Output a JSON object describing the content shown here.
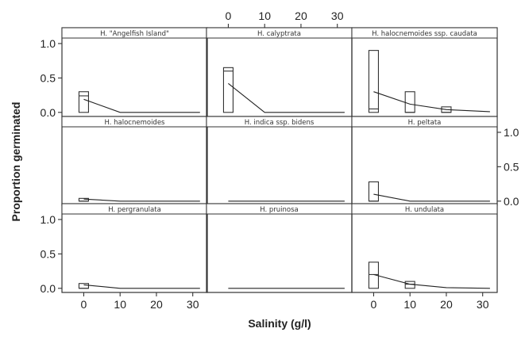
{
  "chart_data": {
    "type": "box",
    "xlabel": "Salinity (g/l)",
    "ylabel": "Proportion germinated",
    "xlim": [
      -6,
      34
    ],
    "ylim": [
      -0.06,
      1.08
    ],
    "x_ticks": [
      "0",
      "10",
      "20",
      "30"
    ],
    "x_tick_values": [
      0,
      10,
      20,
      30
    ],
    "y_ticks": [
      "0.0",
      "0.5",
      "1.0"
    ],
    "y_tick_values": [
      0,
      0.5,
      1.0
    ],
    "panels": [
      {
        "label": "H. \"Angelfish Island\"",
        "boxes": [
          {
            "x": 0,
            "q1": 0.0,
            "median": 0.24,
            "q3": 0.3
          }
        ],
        "line": [
          [
            0,
            0.19
          ],
          [
            10,
            0.0
          ],
          [
            32,
            0.0
          ]
        ]
      },
      {
        "label": "H. calyptrata",
        "boxes": [
          {
            "x": 0,
            "q1": 0.0,
            "median": 0.6,
            "q3": 0.65
          }
        ],
        "line": [
          [
            0,
            0.42
          ],
          [
            10,
            0.0
          ],
          [
            32,
            0.0
          ]
        ]
      },
      {
        "label": "H. halocnemoides ssp. caudata",
        "boxes": [
          {
            "x": 0,
            "q1": 0.0,
            "median": 0.05,
            "q3": 0.9
          },
          {
            "x": 10,
            "q1": 0.0,
            "median": 0.0,
            "q3": 0.3
          },
          {
            "x": 20,
            "q1": 0.0,
            "median": 0.0,
            "q3": 0.08
          }
        ],
        "line": [
          [
            0,
            0.3
          ],
          [
            10,
            0.12
          ],
          [
            20,
            0.04
          ],
          [
            32,
            0.01
          ]
        ]
      },
      {
        "label": "H. halocnemoides",
        "boxes": [
          {
            "x": 0,
            "q1": 0.0,
            "median": 0.0,
            "q3": 0.04
          }
        ],
        "line": [
          [
            0,
            0.03
          ],
          [
            10,
            0.0
          ],
          [
            32,
            0.0
          ]
        ]
      },
      {
        "label": "H. indica ssp. bidens",
        "boxes": [],
        "line": [
          [
            0,
            0.0
          ],
          [
            32,
            0.0
          ]
        ]
      },
      {
        "label": "H. peltata",
        "boxes": [
          {
            "x": 0,
            "q1": 0.0,
            "median": 0.0,
            "q3": 0.28
          }
        ],
        "line": [
          [
            0,
            0.1
          ],
          [
            10,
            0.0
          ],
          [
            32,
            0.0
          ]
        ]
      },
      {
        "label": "H. pergranulata",
        "boxes": [
          {
            "x": 0,
            "q1": 0.0,
            "median": 0.0,
            "q3": 0.07
          }
        ],
        "line": [
          [
            0,
            0.05
          ],
          [
            10,
            0.0
          ],
          [
            32,
            0.0
          ]
        ]
      },
      {
        "label": "H. pruinosa",
        "boxes": [],
        "line": [
          [
            0,
            0.0
          ],
          [
            32,
            0.0
          ]
        ]
      },
      {
        "label": "H. undulata",
        "boxes": [
          {
            "x": 0,
            "q1": 0.0,
            "median": 0.2,
            "q3": 0.38
          },
          {
            "x": 10,
            "q1": 0.0,
            "median": 0.06,
            "q3": 0.1
          }
        ],
        "line": [
          [
            0,
            0.2
          ],
          [
            10,
            0.06
          ],
          [
            20,
            0.01
          ],
          [
            32,
            0.0
          ]
        ]
      }
    ]
  }
}
